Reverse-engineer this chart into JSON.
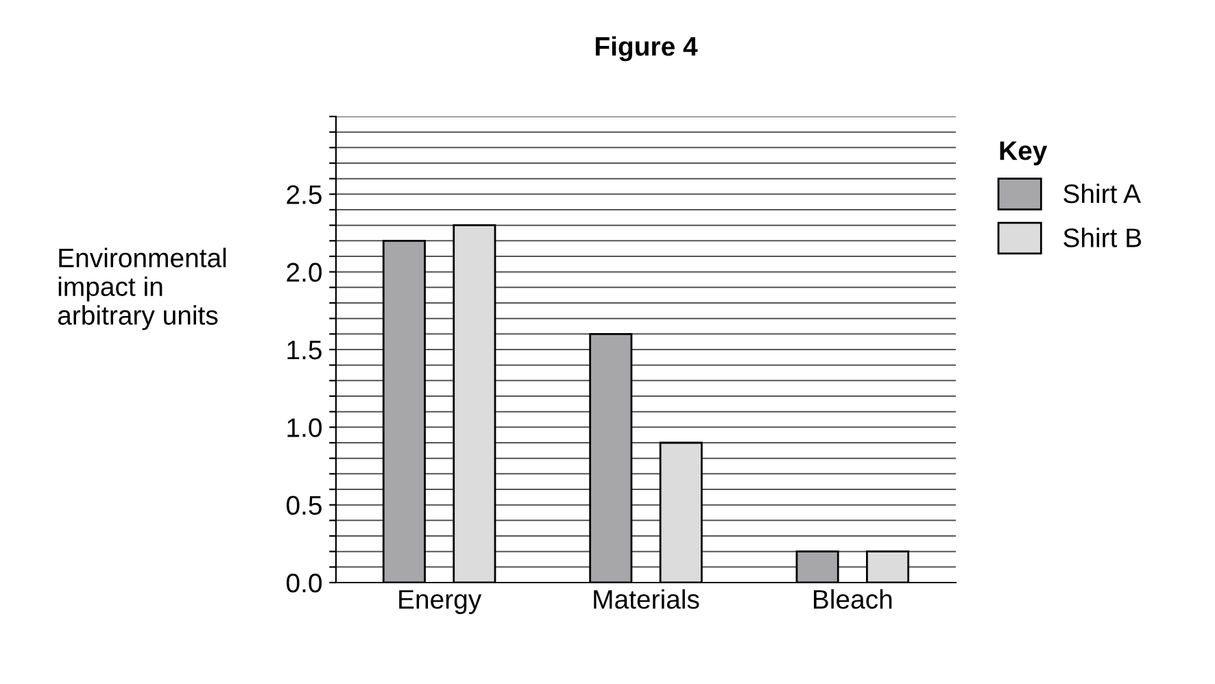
{
  "chart_data": {
    "type": "bar",
    "title": "Figure 4",
    "ylabel": "Environmental\nimpact in\narbitrary units",
    "legend_title": "Key",
    "categories": [
      "Energy",
      "Materials",
      "Bleach"
    ],
    "series": [
      {
        "name": "Shirt A",
        "color": "#a7a7a9",
        "values": [
          2.2,
          1.6,
          0.2
        ]
      },
      {
        "name": "Shirt B",
        "color": "#dcdcdd",
        "values": [
          2.3,
          0.9,
          0.2
        ]
      }
    ],
    "ylim": [
      0,
      3.0
    ],
    "yticks": [
      {
        "value": 0,
        "label": "0.0"
      },
      {
        "value": 0.1,
        "label": null
      },
      {
        "value": 0.2,
        "label": null
      },
      {
        "value": 0.3,
        "label": null
      },
      {
        "value": 0.4,
        "label": null
      },
      0.5,
      {
        "value": 0.6,
        "label": null
      },
      {
        "value": 0.7,
        "label": null
      },
      {
        "value": 0.8,
        "label": null
      },
      {
        "value": 0.9,
        "label": null
      },
      {
        "value": 1,
        "label": "1.0"
      },
      {
        "value": 1.1,
        "label": null
      },
      {
        "value": 1.2,
        "label": null
      },
      {
        "value": 1.3,
        "label": null
      },
      {
        "value": 1.4,
        "label": null
      },
      1.5,
      {
        "value": 1.6,
        "label": null
      },
      {
        "value": 1.7,
        "label": null
      },
      {
        "value": 1.8,
        "label": null
      },
      {
        "value": 1.9,
        "label": null
      },
      {
        "value": 2,
        "label": "2.0"
      },
      {
        "value": 2.1,
        "label": null
      },
      {
        "value": 2.2,
        "label": null
      },
      {
        "value": 2.3,
        "label": null
      },
      {
        "value": 2.4,
        "label": null
      },
      2.5,
      {
        "value": 2.6,
        "label": null
      },
      {
        "value": 2.7,
        "label": null
      },
      {
        "value": 2.8,
        "label": null
      },
      {
        "value": 2.9,
        "label": null
      },
      {
        "value": 3.0,
        "label": null
      }
    ],
    "grid": "y",
    "legend": "top right"
  }
}
